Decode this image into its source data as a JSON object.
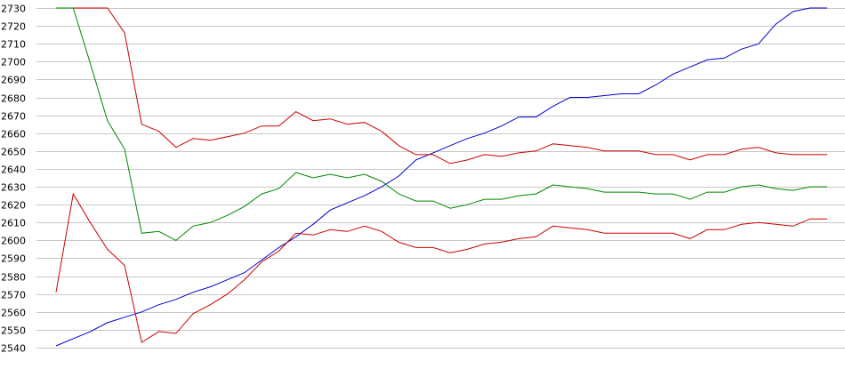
{
  "chart_data": {
    "type": "line",
    "title": "",
    "xlabel": "",
    "ylabel": "",
    "ylim": [
      2540,
      2730
    ],
    "yticks": [
      2730,
      2720,
      2710,
      2700,
      2690,
      2680,
      2670,
      2660,
      2650,
      2640,
      2630,
      2620,
      2610,
      2600,
      2590,
      2580,
      2570,
      2560,
      2550,
      2540
    ],
    "grid": true,
    "legend": "none",
    "x": [
      0,
      1,
      2,
      3,
      4,
      5,
      6,
      7,
      8,
      9,
      10,
      11,
      12,
      13,
      14,
      15,
      16,
      17,
      18,
      19,
      20,
      21,
      22,
      23,
      24,
      25,
      26,
      27,
      28,
      29,
      30,
      31,
      32,
      33,
      34,
      35,
      36,
      37,
      38,
      39,
      40,
      41,
      42,
      43,
      44,
      45
    ],
    "series": [
      {
        "color": "#0000cc",
        "values": [
          2541,
          2545,
          2549,
          2554,
          2557,
          2560,
          2564,
          2567,
          2571,
          2574,
          2578,
          2582,
          2589,
          2596,
          2602,
          2609,
          2617,
          2621,
          2625,
          2630,
          2636,
          2645,
          2649,
          2653,
          2657,
          2660,
          2664,
          2669,
          2669,
          2675,
          2680,
          2680,
          2681,
          2682,
          2682,
          2687,
          2693,
          2697,
          2701,
          2702,
          2707,
          2710,
          2721,
          2728,
          2730,
          2730
        ]
      },
      {
        "color": "#cc0000",
        "values": [
          2730,
          2730,
          2730,
          2730,
          2716,
          2665,
          2661,
          2652,
          2657,
          2656,
          2658,
          2660,
          2664,
          2664,
          2672,
          2667,
          2668,
          2665,
          2666,
          2661,
          2653,
          2648,
          2648,
          2643,
          2645,
          2648,
          2647,
          2649,
          2650,
          2654,
          2653,
          2652,
          2650,
          2650,
          2650,
          2648,
          2648,
          2645,
          2648,
          2648,
          2651,
          2652,
          2649,
          2648,
          2648,
          2648
        ]
      },
      {
        "color": "#008800",
        "values": [
          2730,
          2730,
          2699,
          2667,
          2651,
          2604,
          2605,
          2600,
          2608,
          2610,
          2614,
          2619,
          2626,
          2629,
          2638,
          2635,
          2637,
          2635,
          2637,
          2633,
          2626,
          2622,
          2622,
          2618,
          2620,
          2623,
          2623,
          2625,
          2626,
          2631,
          2630,
          2629,
          2627,
          2627,
          2627,
          2626,
          2626,
          2623,
          2627,
          2627,
          2630,
          2631,
          2629,
          2628,
          2630,
          2630
        ]
      },
      {
        "color": "#cc0000",
        "values": [
          2571,
          2626,
          2610,
          2595,
          2586,
          2543,
          2549,
          2548,
          2559,
          2564,
          2570,
          2578,
          2588,
          2594,
          2604,
          2603,
          2606,
          2605,
          2608,
          2605,
          2599,
          2596,
          2596,
          2593,
          2595,
          2598,
          2599,
          2601,
          2602,
          2608,
          2607,
          2606,
          2604,
          2604,
          2604,
          2604,
          2604,
          2601,
          2606,
          2606,
          2609,
          2610,
          2609,
          2608,
          2612,
          2612
        ]
      }
    ]
  }
}
